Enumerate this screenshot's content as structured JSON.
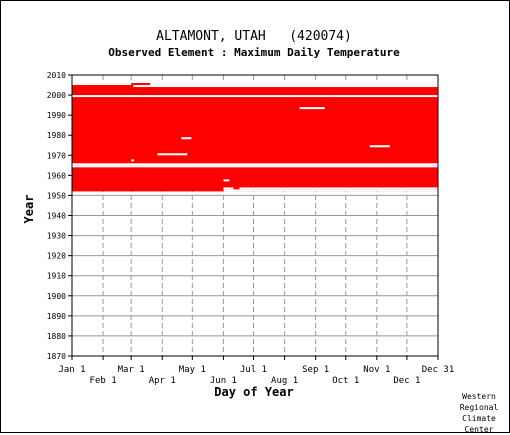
{
  "header": {
    "station": "ALTAMONT, UTAH",
    "station_id": "(420074)",
    "element_label": "Observed Element : Maximum Daily Temperature"
  },
  "credit": {
    "line1": "Western",
    "line2": "Regional",
    "line3": "Climate",
    "line4": "Center"
  },
  "colors": {
    "data": "#ff0000",
    "grid": "#999999",
    "axis": "#000000"
  },
  "chart_data": {
    "type": "heatmap",
    "title": "ALTAMONT, UTAH   (420074)",
    "subtitle": "Observed Element : Maximum Daily Temperature",
    "xlabel": "Day of Year",
    "ylabel": "Year",
    "xlim": [
      1,
      366
    ],
    "ylim": [
      1870,
      2010
    ],
    "y_ticks": [
      1870,
      1880,
      1890,
      1900,
      1910,
      1920,
      1930,
      1940,
      1950,
      1960,
      1970,
      1980,
      1990,
      2000,
      2010
    ],
    "x_ticks_top_row": [
      "Jan 1",
      "Mar 1",
      "May 1",
      "Jul 1",
      "Sep 1",
      "Nov 1",
      "Dec 31"
    ],
    "x_ticks_bottom_row": [
      "Feb 1",
      "Apr 1",
      "Jun 1",
      "Aug 1",
      "Oct 1",
      "Dec 1"
    ],
    "x_tick_days": {
      "Jan 1": 1,
      "Feb 1": 32,
      "Mar 1": 60,
      "Apr 1": 91,
      "May 1": 121,
      "Jun 1": 152,
      "Jul 1": 182,
      "Aug 1": 213,
      "Sep 1": 244,
      "Oct 1": 274,
      "Nov 1": 305,
      "Dec 1": 335,
      "Dec 31": 366
    },
    "grid": true,
    "coverage": [
      {
        "start_year": 1952,
        "end_year": 2005,
        "start_day": 1,
        "end_day": 366
      }
    ],
    "gaps": [
      {
        "year": 1952,
        "start_day": 152,
        "end_day": 366
      },
      {
        "year": 1953,
        "start_day": 152,
        "end_day": 162
      },
      {
        "year": 1953,
        "start_day": 168,
        "end_day": 366
      },
      {
        "year": 1957,
        "start_day": 152,
        "end_day": 158
      },
      {
        "year": 1964,
        "start_day": 1,
        "end_day": 366
      },
      {
        "year": 1965,
        "start_day": 1,
        "end_day": 366
      },
      {
        "year": 1967,
        "start_day": 60,
        "end_day": 63
      },
      {
        "year": 1970,
        "start_day": 86,
        "end_day": 116
      },
      {
        "year": 1974,
        "start_day": 298,
        "end_day": 318
      },
      {
        "year": 1978,
        "start_day": 110,
        "end_day": 120
      },
      {
        "year": 1993,
        "start_day": 228,
        "end_day": 253
      },
      {
        "year": 1999,
        "start_day": 1,
        "end_day": 366
      },
      {
        "year": 2004,
        "start_day": 62,
        "end_day": 366
      },
      {
        "year": 2005,
        "start_day": 1,
        "end_day": 60
      },
      {
        "year": 2005,
        "start_day": 79,
        "end_day": 366
      }
    ]
  }
}
